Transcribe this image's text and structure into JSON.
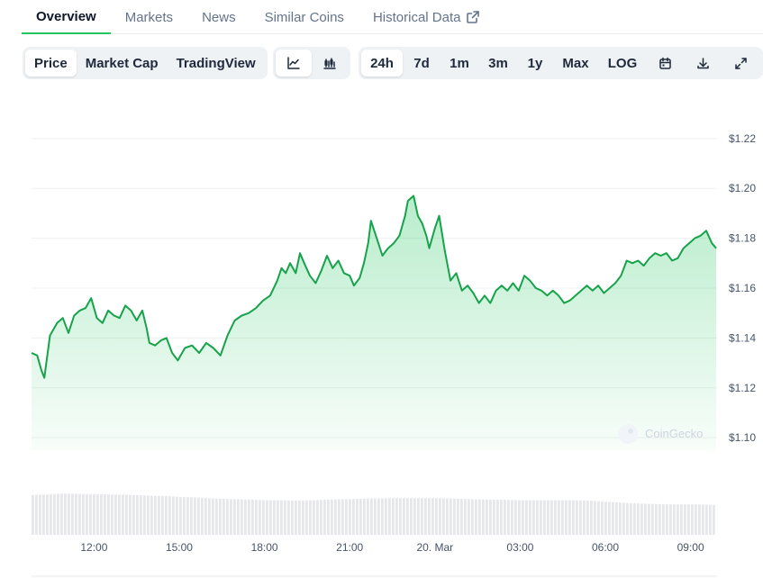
{
  "tabs": [
    {
      "label": "Overview"
    },
    {
      "label": "Markets"
    },
    {
      "label": "News"
    },
    {
      "label": "Similar Coins"
    },
    {
      "label": "Historical Data"
    }
  ],
  "toolbar": {
    "metric_tabs": [
      "Price",
      "Market Cap",
      "TradingView"
    ],
    "chart_type_icons": [
      "line-chart-icon",
      "candlestick-icon"
    ],
    "ranges": [
      "24h",
      "7d",
      "1m",
      "3m",
      "1y",
      "Max",
      "LOG"
    ],
    "selected_metric": "Price",
    "selected_range": "24h",
    "action_icons": [
      "calendar-icon",
      "download-icon",
      "fullscreen-icon"
    ]
  },
  "colors": {
    "line": "#16a34a",
    "fill": "#22c55e",
    "volume": "#e5e7eb",
    "accent": "#22c55e"
  },
  "watermark": "CoinGecko",
  "chart_data": {
    "type": "area",
    "ylim": [
      1.095,
      1.225
    ],
    "y_ticks": [
      "$1.22",
      "$1.20",
      "$1.18",
      "$1.16",
      "$1.14",
      "$1.12",
      "$1.10"
    ],
    "y_tick_values": [
      1.22,
      1.2,
      1.18,
      1.16,
      1.14,
      1.12,
      1.1
    ],
    "x_ticks": [
      "12:00",
      "15:00",
      "18:00",
      "21:00",
      "20. Mar",
      "03:00",
      "06:00",
      "09:00"
    ],
    "x_tick_hours": [
      12,
      15,
      18,
      21,
      24,
      27,
      30,
      33
    ],
    "x_range_hours": [
      9.8,
      33.9
    ],
    "grid": true,
    "series": [
      {
        "points": [
          [
            9.8,
            1.134
          ],
          [
            10.0,
            1.133
          ],
          [
            10.15,
            1.127
          ],
          [
            10.25,
            1.124
          ],
          [
            10.45,
            1.141
          ],
          [
            10.7,
            1.146
          ],
          [
            10.9,
            1.148
          ],
          [
            11.1,
            1.142
          ],
          [
            11.3,
            1.149
          ],
          [
            11.5,
            1.151
          ],
          [
            11.7,
            1.152
          ],
          [
            11.9,
            1.156
          ],
          [
            12.1,
            1.148
          ],
          [
            12.3,
            1.146
          ],
          [
            12.5,
            1.151
          ],
          [
            12.7,
            1.149
          ],
          [
            12.9,
            1.148
          ],
          [
            13.1,
            1.153
          ],
          [
            13.3,
            1.151
          ],
          [
            13.5,
            1.147
          ],
          [
            13.7,
            1.151
          ],
          [
            13.85,
            1.144
          ],
          [
            13.95,
            1.138
          ],
          [
            14.15,
            1.137
          ],
          [
            14.35,
            1.139
          ],
          [
            14.55,
            1.14
          ],
          [
            14.75,
            1.134
          ],
          [
            14.95,
            1.131
          ],
          [
            15.2,
            1.136
          ],
          [
            15.45,
            1.137
          ],
          [
            15.7,
            1.134
          ],
          [
            15.95,
            1.138
          ],
          [
            16.2,
            1.136
          ],
          [
            16.45,
            1.133
          ],
          [
            16.7,
            1.141
          ],
          [
            16.95,
            1.147
          ],
          [
            17.2,
            1.149
          ],
          [
            17.45,
            1.15
          ],
          [
            17.7,
            1.152
          ],
          [
            17.95,
            1.155
          ],
          [
            18.2,
            1.157
          ],
          [
            18.45,
            1.163
          ],
          [
            18.6,
            1.168
          ],
          [
            18.75,
            1.166
          ],
          [
            18.9,
            1.17
          ],
          [
            19.1,
            1.166
          ],
          [
            19.25,
            1.174
          ],
          [
            19.4,
            1.17
          ],
          [
            19.6,
            1.165
          ],
          [
            19.8,
            1.162
          ],
          [
            20.0,
            1.167
          ],
          [
            20.2,
            1.173
          ],
          [
            20.4,
            1.168
          ],
          [
            20.6,
            1.171
          ],
          [
            20.8,
            1.166
          ],
          [
            21.0,
            1.165
          ],
          [
            21.15,
            1.161
          ],
          [
            21.35,
            1.164
          ],
          [
            21.5,
            1.17
          ],
          [
            21.65,
            1.178
          ],
          [
            21.75,
            1.187
          ],
          [
            21.95,
            1.18
          ],
          [
            22.15,
            1.173
          ],
          [
            22.35,
            1.176
          ],
          [
            22.55,
            1.178
          ],
          [
            22.75,
            1.181
          ],
          [
            22.95,
            1.189
          ],
          [
            23.05,
            1.195
          ],
          [
            23.25,
            1.197
          ],
          [
            23.4,
            1.189
          ],
          [
            23.55,
            1.186
          ],
          [
            23.7,
            1.181
          ],
          [
            23.8,
            1.176
          ],
          [
            24.0,
            1.184
          ],
          [
            24.15,
            1.189
          ],
          [
            24.35,
            1.175
          ],
          [
            24.55,
            1.163
          ],
          [
            24.75,
            1.166
          ],
          [
            24.95,
            1.159
          ],
          [
            25.15,
            1.161
          ],
          [
            25.35,
            1.158
          ],
          [
            25.55,
            1.154
          ],
          [
            25.75,
            1.157
          ],
          [
            25.95,
            1.154
          ],
          [
            26.15,
            1.159
          ],
          [
            26.35,
            1.161
          ],
          [
            26.55,
            1.159
          ],
          [
            26.75,
            1.162
          ],
          [
            26.95,
            1.159
          ],
          [
            27.15,
            1.165
          ],
          [
            27.35,
            1.163
          ],
          [
            27.55,
            1.16
          ],
          [
            27.75,
            1.159
          ],
          [
            27.95,
            1.157
          ],
          [
            28.15,
            1.159
          ],
          [
            28.35,
            1.157
          ],
          [
            28.55,
            1.154
          ],
          [
            28.75,
            1.155
          ],
          [
            28.95,
            1.157
          ],
          [
            29.15,
            1.159
          ],
          [
            29.35,
            1.161
          ],
          [
            29.55,
            1.159
          ],
          [
            29.75,
            1.161
          ],
          [
            29.95,
            1.158
          ],
          [
            30.15,
            1.16
          ],
          [
            30.35,
            1.162
          ],
          [
            30.55,
            1.165
          ],
          [
            30.75,
            1.171
          ],
          [
            30.95,
            1.17
          ],
          [
            31.15,
            1.171
          ],
          [
            31.35,
            1.169
          ],
          [
            31.55,
            1.172
          ],
          [
            31.75,
            1.174
          ],
          [
            31.95,
            1.173
          ],
          [
            32.15,
            1.174
          ],
          [
            32.35,
            1.171
          ],
          [
            32.55,
            1.172
          ],
          [
            32.75,
            1.176
          ],
          [
            32.95,
            1.178
          ],
          [
            33.15,
            1.18
          ],
          [
            33.35,
            1.181
          ],
          [
            33.55,
            1.183
          ],
          [
            33.75,
            1.178
          ],
          [
            33.9,
            1.176
          ]
        ]
      }
    ],
    "volume": [
      0.92,
      0.93,
      0.95,
      0.95,
      0.94,
      0.94,
      0.93,
      0.92,
      0.91,
      0.9,
      0.89,
      0.87,
      0.86,
      0.84,
      0.83,
      0.82,
      0.81,
      0.8,
      0.8,
      0.79,
      0.8,
      0.81,
      0.82,
      0.83,
      0.84,
      0.84,
      0.85,
      0.85,
      0.85,
      0.85,
      0.84,
      0.83,
      0.82,
      0.81,
      0.81,
      0.8,
      0.8,
      0.8,
      0.8,
      0.8,
      0.79,
      0.77,
      0.75,
      0.73,
      0.72,
      0.71,
      0.7,
      0.7,
      0.7,
      0.69
    ]
  }
}
